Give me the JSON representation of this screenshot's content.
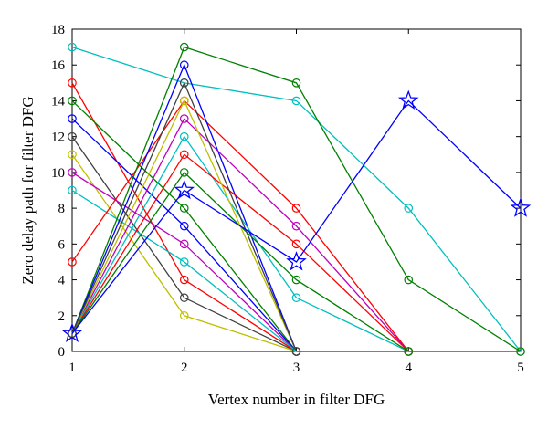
{
  "chart_data": {
    "type": "line",
    "title": "",
    "xlabel": "Vertex number in filter DFG",
    "ylabel": "Zero delay path for filter DFG",
    "xlim": [
      1,
      5
    ],
    "ylim": [
      0,
      18
    ],
    "xticks": [
      1,
      2,
      3,
      4,
      5
    ],
    "yticks": [
      0,
      2,
      4,
      6,
      8,
      10,
      12,
      14,
      16,
      18
    ],
    "grid": false,
    "legend": "none",
    "series": [
      {
        "color": "#00bfbf",
        "marker": "circle",
        "x": [
          1,
          2,
          3,
          4,
          5
        ],
        "y": [
          17,
          15,
          14,
          8,
          0
        ]
      },
      {
        "color": "#ff0000",
        "marker": "circle",
        "x": [
          1,
          2,
          3
        ],
        "y": [
          15,
          4,
          0
        ]
      },
      {
        "color": "#008000",
        "marker": "circle",
        "x": [
          1,
          2,
          3
        ],
        "y": [
          14,
          8,
          0
        ]
      },
      {
        "color": "#0000ff",
        "marker": "circle",
        "x": [
          1,
          2,
          3
        ],
        "y": [
          13,
          7,
          0
        ]
      },
      {
        "color": "#404040",
        "marker": "circle",
        "x": [
          1,
          2,
          3
        ],
        "y": [
          12,
          3,
          0
        ]
      },
      {
        "color": "#bfbf00",
        "marker": "circle",
        "x": [
          1,
          2,
          3
        ],
        "y": [
          11,
          2,
          0
        ]
      },
      {
        "color": "#bf00bf",
        "marker": "circle",
        "x": [
          1,
          2,
          3
        ],
        "y": [
          10,
          6,
          0
        ]
      },
      {
        "color": "#00bfbf",
        "marker": "circle",
        "x": [
          1,
          2,
          3
        ],
        "y": [
          9,
          5,
          0
        ]
      },
      {
        "color": "#ff0000",
        "marker": "circle",
        "x": [
          1,
          2,
          3,
          4
        ],
        "y": [
          5,
          14,
          8,
          0
        ]
      },
      {
        "color": "#008000",
        "marker": "circle",
        "x": [
          1,
          2,
          3,
          4,
          5
        ],
        "y": [
          1,
          17,
          15,
          4,
          0
        ]
      },
      {
        "color": "#0000ff",
        "marker": "circle",
        "x": [
          1,
          2,
          3
        ],
        "y": [
          1,
          16,
          0
        ]
      },
      {
        "color": "#bf00bf",
        "marker": "circle",
        "x": [
          1,
          2,
          3,
          4
        ],
        "y": [
          1,
          13,
          7,
          0
        ]
      },
      {
        "color": "#00bfbf",
        "marker": "circle",
        "x": [
          1,
          2,
          3,
          4
        ],
        "y": [
          1,
          12,
          3,
          0
        ]
      },
      {
        "color": "#ff0000",
        "marker": "circle",
        "x": [
          1,
          2,
          3,
          4
        ],
        "y": [
          1,
          11,
          6,
          0
        ]
      },
      {
        "color": "#008000",
        "marker": "circle",
        "x": [
          1,
          2,
          3,
          4
        ],
        "y": [
          1,
          10,
          4,
          0
        ]
      },
      {
        "color": "#bfbf00",
        "marker": "circle",
        "x": [
          1,
          2,
          3
        ],
        "y": [
          1,
          14,
          0
        ]
      },
      {
        "color": "#404040",
        "marker": "circle",
        "x": [
          1,
          2,
          3
        ],
        "y": [
          1,
          15,
          0
        ]
      },
      {
        "color": "#0000ff",
        "marker": "star",
        "x": [
          1,
          2,
          3,
          4,
          5
        ],
        "y": [
          1,
          9,
          5,
          14,
          8
        ]
      }
    ]
  }
}
